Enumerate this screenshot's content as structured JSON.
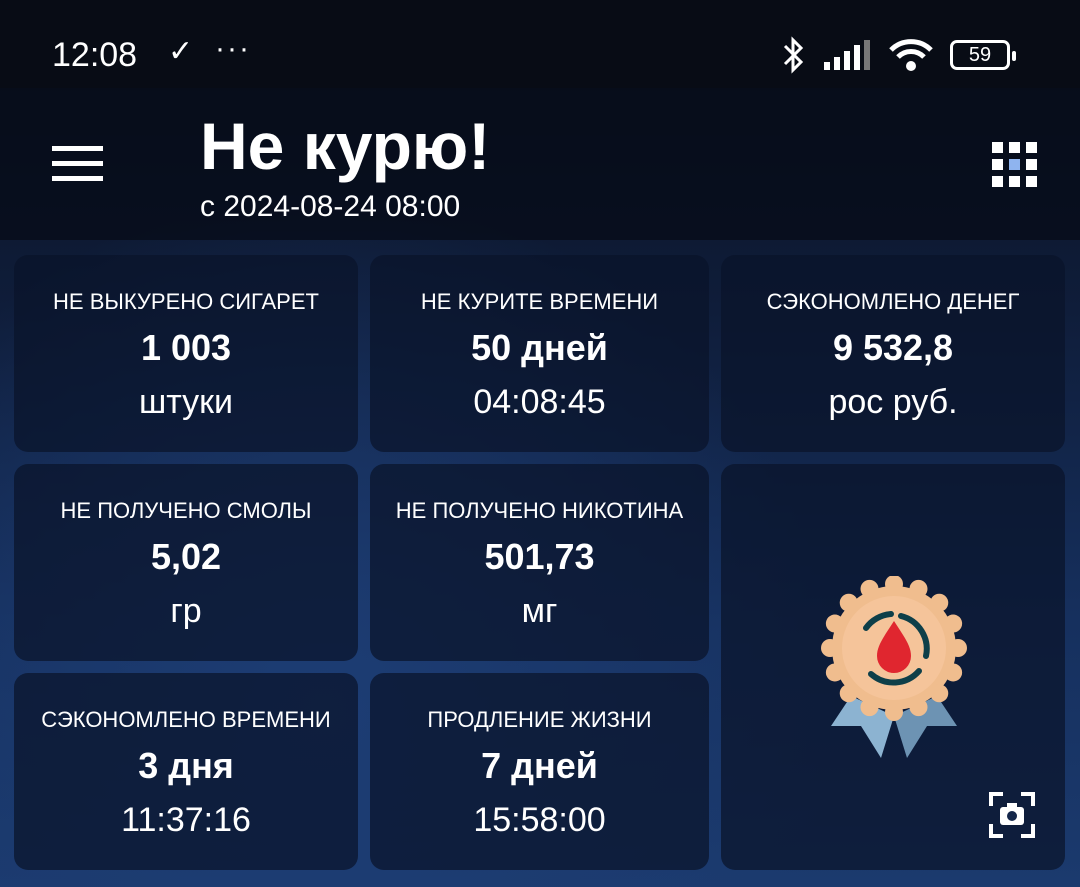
{
  "status_bar": {
    "time": "12:08",
    "check": "✓",
    "more": "···",
    "battery": "59"
  },
  "header": {
    "title": "Не курю!",
    "subtitle": "с 2024-08-24 08:00"
  },
  "tiles": [
    {
      "label": "НЕ ВЫКУРЕНО СИГАРЕТ",
      "value": "1 003",
      "unit": "штуки"
    },
    {
      "label": "НЕ КУРИТЕ ВРЕМЕНИ",
      "value": "50 дней",
      "unit": "04:08:45"
    },
    {
      "label": "СЭКОНОМЛЕНО ДЕНЕГ",
      "value": "9 532,8",
      "unit": "рос руб."
    },
    {
      "label": "НЕ ПОЛУЧЕНО СМОЛЫ",
      "value": "5,02",
      "unit": "гр"
    },
    {
      "label": "НЕ ПОЛУЧЕНО НИКОТИНА",
      "value": "501,73",
      "unit": "мг"
    },
    {
      "label": "СЭКОНОМЛЕНО ВРЕМЕНИ",
      "value": "3 дня",
      "unit": "11:37:16"
    },
    {
      "label": "ПРОДЛЕНИЕ ЖИЗНИ",
      "value": "7 дней",
      "unit": "15:58:00"
    }
  ],
  "achievement": {
    "icon": "blood-drop-medal-icon"
  }
}
